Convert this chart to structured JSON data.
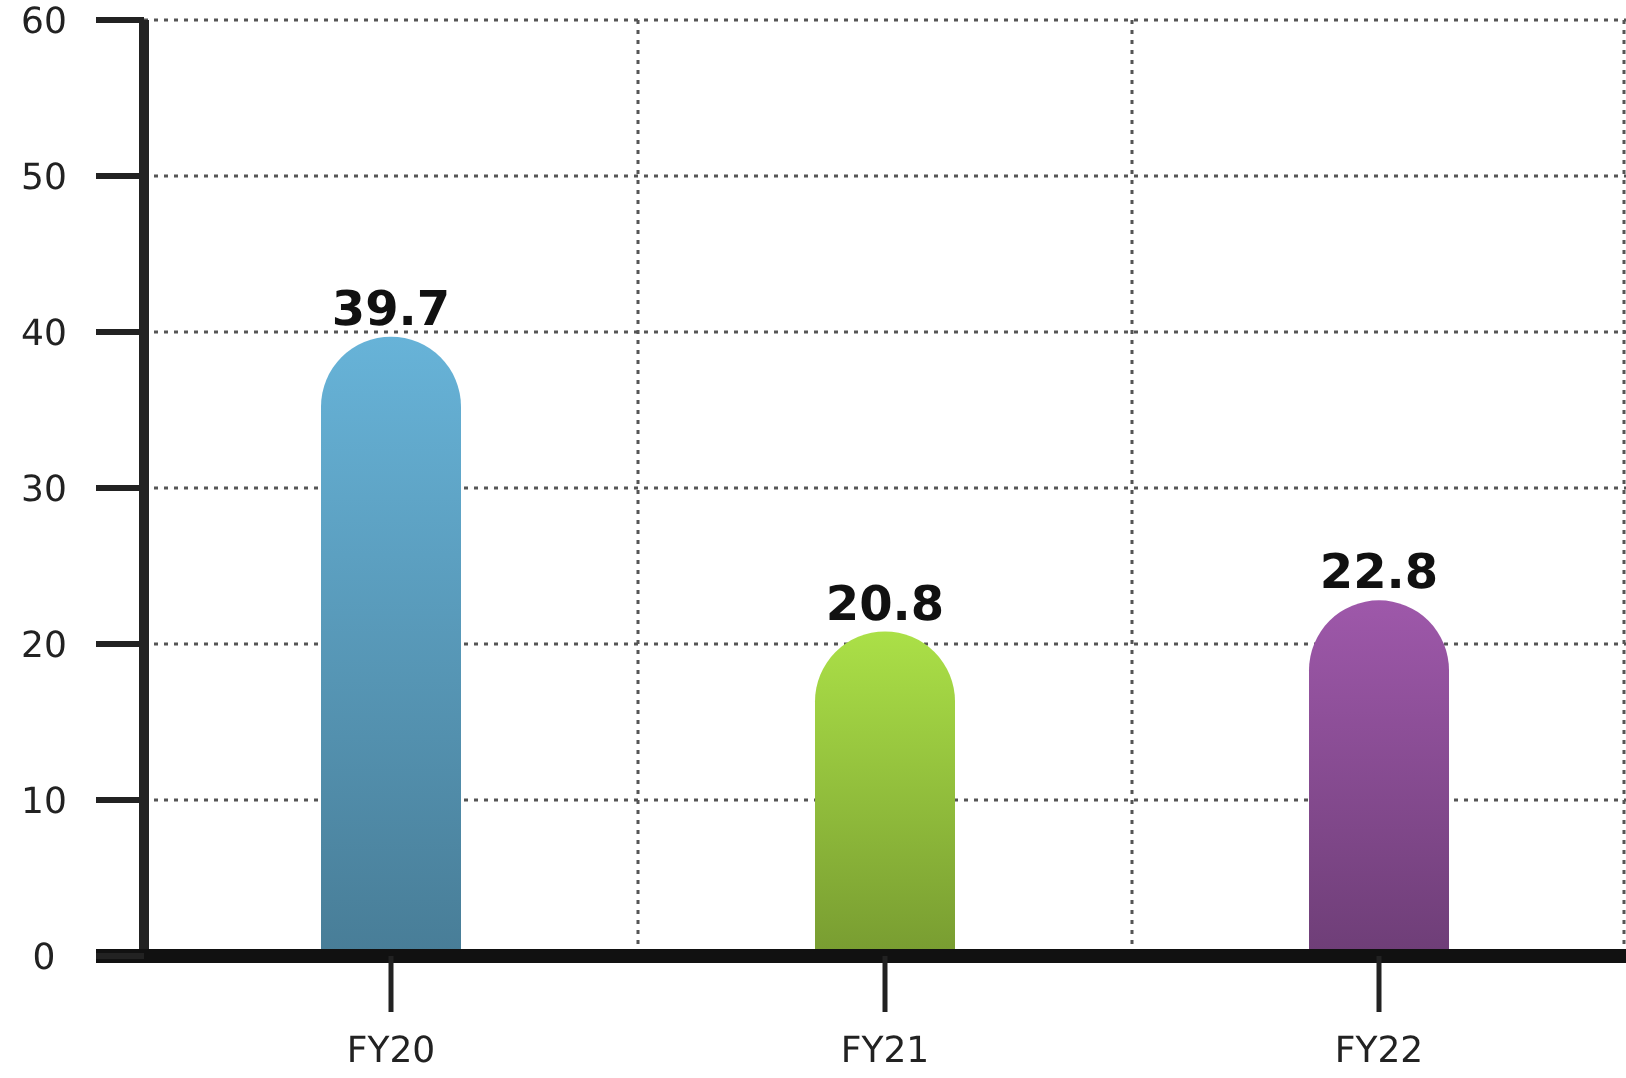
{
  "chart_data": {
    "type": "bar",
    "categories": [
      "FY20",
      "FY21",
      "FY22"
    ],
    "values": [
      39.7,
      20.8,
      22.8
    ],
    "colors": [
      "#5696b5",
      "#8fbb3b",
      "#844a8e"
    ],
    "ylim": [
      0,
      60
    ],
    "yticks": [
      0,
      10,
      20,
      30,
      40,
      50,
      60
    ],
    "grid": true,
    "data_labels": true
  }
}
